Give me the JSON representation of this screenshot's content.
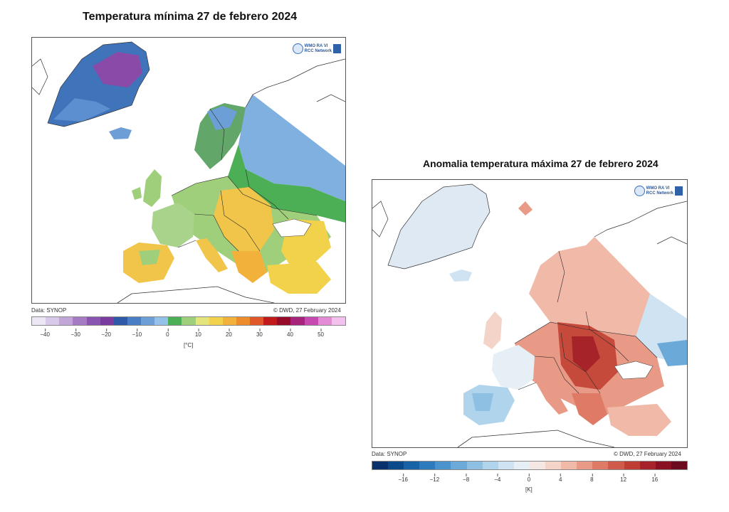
{
  "map1": {
    "title": "Temperatura mínima 27 de febrero 2024",
    "logo_line1": "WMO RA VI",
    "logo_line2": "RCC Network",
    "data_label": "Data: SYNOP",
    "credit": "© DWD, 27 February 2024",
    "unit": "[°C]",
    "colorbar": [
      "#ece6f5",
      "#d9c9e8",
      "#c3a6d8",
      "#a57cc4",
      "#8a55b0",
      "#7a3c9f",
      "#2e58a8",
      "#4a7ec4",
      "#6c9fd6",
      "#93c1e8",
      "#4cae55",
      "#9fcf7a",
      "#e3e57a",
      "#f2d24a",
      "#f1b13a",
      "#ec8c2a",
      "#e0572a",
      "#c11a1a",
      "#960a2a",
      "#a8237a",
      "#c64ab0",
      "#e48bd6",
      "#f3c1ee"
    ],
    "ticks": [
      "−40",
      "−30",
      "−20",
      "−10",
      "0",
      "10",
      "20",
      "30",
      "40",
      "50"
    ]
  },
  "map2": {
    "title": "Anomalia temperatura máxima 27 de febrero 2024",
    "logo_line1": "WMO RA VI",
    "logo_line2": "RCC Network",
    "data_label": "Data: SYNOP",
    "credit": "© DWD, 27 February 2024",
    "unit": "[K]",
    "colorbar": [
      "#08306b",
      "#0b4a8a",
      "#1862a8",
      "#2d7bbd",
      "#4b93cc",
      "#6aa9d8",
      "#8dc0e3",
      "#b0d4ec",
      "#cfe3f2",
      "#e6eff6",
      "#f5e8e4",
      "#f4d3c8",
      "#f0b9a8",
      "#e89a86",
      "#de7a66",
      "#d15b4a",
      "#bf3d33",
      "#a6232a",
      "#8a1024",
      "#6d0a1e"
    ],
    "ticks": [
      "−16",
      "−12",
      "−8",
      "−4",
      "0",
      "4",
      "8",
      "12",
      "16"
    ]
  }
}
